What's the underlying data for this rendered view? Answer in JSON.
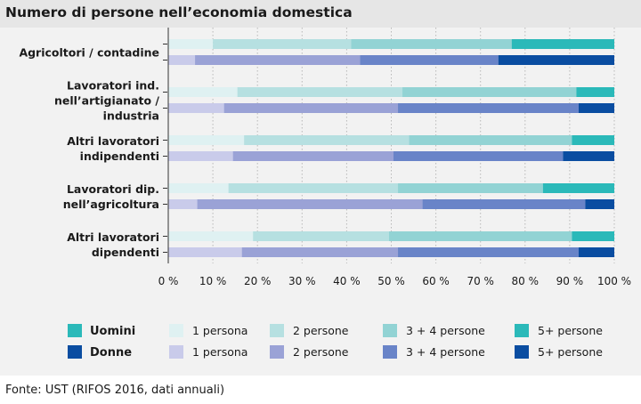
{
  "title": "Numero di persone nell’economia domestica",
  "source": "Fonte: UST (RIFOS 2016, dati annuali)",
  "chart_data": {
    "type": "bar",
    "orientation": "horizontal",
    "stacked": true,
    "percent_axis": true,
    "xlim": [
      0,
      100
    ],
    "ticks": [
      "0 %",
      "10 %",
      "20 %",
      "30 %",
      "40 %",
      "50 %",
      "60 %",
      "70 %",
      "80 %",
      "90 %",
      "100 %"
    ],
    "tick_values": [
      0,
      10,
      20,
      30,
      40,
      50,
      60,
      70,
      80,
      90,
      100
    ],
    "categories": [
      [
        "Agricoltori / contadine"
      ],
      [
        "Lavoratori ind.",
        "nell’artigianato /",
        "industria"
      ],
      [
        "Altri lavoratori",
        "indipendenti"
      ],
      [
        "Lavoratori dip.",
        "nell’agricoltura"
      ],
      [
        "Altri lavoratori",
        "dipendenti"
      ]
    ],
    "segment_labels": [
      "1 persona",
      "2 persone",
      "3 + 4 persone",
      "5+ persone"
    ],
    "series": [
      {
        "name": "Uomini",
        "colors": [
          "#dff1f2",
          "#b6e0e1",
          "#92d3d4",
          "#2bb9b9"
        ],
        "values": [
          [
            10,
            31,
            36,
            23
          ],
          [
            15.5,
            37,
            39,
            8.5
          ],
          [
            17,
            37,
            36.5,
            9.5
          ],
          [
            13.5,
            38,
            32.5,
            16
          ],
          [
            19,
            30.5,
            41,
            9.5
          ]
        ]
      },
      {
        "name": "Donne",
        "colors": [
          "#c9cbea",
          "#9aa2d6",
          "#6984c8",
          "#0a4da1"
        ],
        "values": [
          [
            6,
            37,
            31,
            26
          ],
          [
            12.5,
            39,
            40.5,
            8
          ],
          [
            14.5,
            36,
            38,
            11.5
          ],
          [
            6.5,
            50.5,
            36.5,
            6.5
          ],
          [
            16.5,
            35,
            40.5,
            8
          ]
        ]
      }
    ]
  },
  "legend": {
    "rows": [
      {
        "label": "Uomini",
        "color": "#2bb9b9",
        "items": [
          {
            "label": "1 persona",
            "color": "#dff1f2"
          },
          {
            "label": "2 persone",
            "color": "#b6e0e1"
          },
          {
            "label": "3 + 4 persone",
            "color": "#92d3d4"
          },
          {
            "label": "5+ persone",
            "color": "#2bb9b9"
          }
        ]
      },
      {
        "label": "Donne",
        "color": "#0a4da1",
        "items": [
          {
            "label": "1 persona",
            "color": "#c9cbea"
          },
          {
            "label": "2 persone",
            "color": "#9aa2d6"
          },
          {
            "label": "3 + 4 persone",
            "color": "#6984c8"
          },
          {
            "label": "5+ persone",
            "color": "#0a4da1"
          }
        ]
      }
    ]
  }
}
